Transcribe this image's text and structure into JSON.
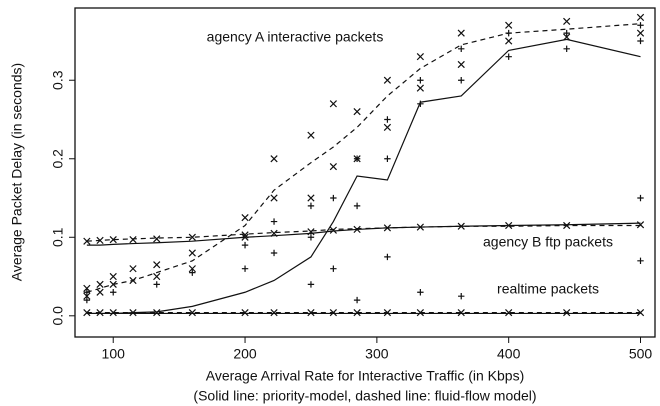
{
  "chart_data": {
    "type": "line",
    "x_label": "Average Arrival Rate for Interactive Traffic (in Kbps)",
    "y_label": "Average Packet Delay (in seconds)",
    "caption": "(Solid line: priority-model, dashed line: fluid-flow model)",
    "annotations": [
      "agency A interactive packets",
      "agency B ftp packets",
      "realtime packets"
    ],
    "xlim": [
      71,
      511
    ],
    "ylim": [
      -0.027,
      0.392
    ],
    "xticks": [
      100,
      200,
      300,
      400,
      500
    ],
    "yticks": [
      {
        "value": 0,
        "label": "0.0"
      },
      0.1,
      0.2,
      0.3
    ],
    "color": "#111111",
    "x": [
      80,
      90,
      100,
      115,
      133,
      160,
      200,
      222,
      250,
      267,
      285,
      308,
      333,
      364,
      400,
      444,
      500
    ],
    "series": [
      {
        "style": "solid",
        "values": [
          0.003,
          0.003,
          0.003,
          0.004,
          0.005,
          0.012,
          0.03,
          0.045,
          0.075,
          0.12,
          0.178,
          0.173,
          0.272,
          0.28,
          0.338,
          0.352,
          0.33
        ]
      },
      {
        "style": "dashed",
        "values": [
          0.03,
          0.035,
          0.04,
          0.045,
          0.055,
          0.07,
          0.115,
          0.16,
          0.195,
          0.215,
          0.24,
          0.28,
          0.315,
          0.345,
          0.36,
          0.365,
          0.372
        ]
      },
      {
        "style": "solid",
        "values": [
          0.09,
          0.09,
          0.091,
          0.092,
          0.093,
          0.095,
          0.1,
          0.102,
          0.105,
          0.108,
          0.11,
          0.112,
          0.113,
          0.114,
          0.115,
          0.116,
          0.118
        ]
      },
      {
        "style": "dashed",
        "values": [
          0.095,
          0.096,
          0.097,
          0.098,
          0.099,
          0.1,
          0.104,
          0.106,
          0.108,
          0.11,
          0.111,
          0.112,
          0.113,
          0.114,
          0.114,
          0.115,
          0.115
        ]
      },
      {
        "style": "solid",
        "values": [
          0.003,
          0.003,
          0.003,
          0.003,
          0.003,
          0.003,
          0.003,
          0.003,
          0.003,
          0.003,
          0.003,
          0.003,
          0.003,
          0.003,
          0.003,
          0.003,
          0.003
        ]
      },
      {
        "style": "dashed",
        "values": [
          0.004,
          0.004,
          0.004,
          0.004,
          0.004,
          0.004,
          0.004,
          0.004,
          0.004,
          0.004,
          0.004,
          0.004,
          0.004,
          0.004,
          0.004,
          0.004,
          0.004
        ]
      }
    ],
    "points": [
      {
        "marker": "x",
        "x": [
          80,
          80,
          90,
          90,
          100,
          100,
          115,
          115,
          133,
          133,
          160,
          160,
          200,
          200,
          222,
          222,
          250,
          250,
          267,
          267,
          285,
          285,
          308,
          308,
          333,
          333,
          364,
          364,
          400,
          400,
          444,
          444,
          500,
          500,
          80,
          90,
          100,
          115,
          133,
          160,
          200,
          222,
          250,
          267,
          285,
          308,
          333,
          364,
          400,
          444,
          500,
          80,
          90,
          100,
          115,
          133,
          160,
          200,
          222,
          250,
          267,
          285,
          308,
          333,
          364,
          400,
          444,
          500
        ],
        "values": [
          0.025,
          0.035,
          0.03,
          0.04,
          0.04,
          0.05,
          0.045,
          0.06,
          0.05,
          0.065,
          0.06,
          0.08,
          0.1,
          0.125,
          0.15,
          0.2,
          0.15,
          0.23,
          0.19,
          0.27,
          0.2,
          0.26,
          0.24,
          0.3,
          0.29,
          0.33,
          0.32,
          0.36,
          0.35,
          0.37,
          0.355,
          0.375,
          0.36,
          0.38,
          0.095,
          0.096,
          0.097,
          0.097,
          0.098,
          0.1,
          0.103,
          0.105,
          0.107,
          0.109,
          0.11,
          0.112,
          0.113,
          0.114,
          0.115,
          0.115,
          0.116,
          0.004,
          0.004,
          0.004,
          0.004,
          0.004,
          0.004,
          0.004,
          0.004,
          0.004,
          0.004,
          0.004,
          0.004,
          0.004,
          0.004,
          0.004,
          0.004,
          0.004
        ]
      },
      {
        "marker": "+",
        "x": [
          80,
          80,
          100,
          133,
          160,
          200,
          200,
          222,
          222,
          250,
          250,
          267,
          267,
          285,
          285,
          308,
          308,
          333,
          333,
          364,
          364,
          400,
          400,
          444,
          444,
          500,
          500,
          308,
          500,
          500,
          250,
          285,
          364,
          333
        ],
        "values": [
          0.02,
          0.03,
          0.03,
          0.04,
          0.055,
          0.06,
          0.09,
          0.08,
          0.12,
          0.1,
          0.14,
          0.06,
          0.15,
          0.14,
          0.2,
          0.2,
          0.25,
          0.27,
          0.3,
          0.3,
          0.34,
          0.33,
          0.36,
          0.34,
          0.36,
          0.35,
          0.37,
          0.075,
          0.15,
          0.07,
          0.04,
          0.02,
          0.025,
          0.03
        ]
      }
    ]
  }
}
